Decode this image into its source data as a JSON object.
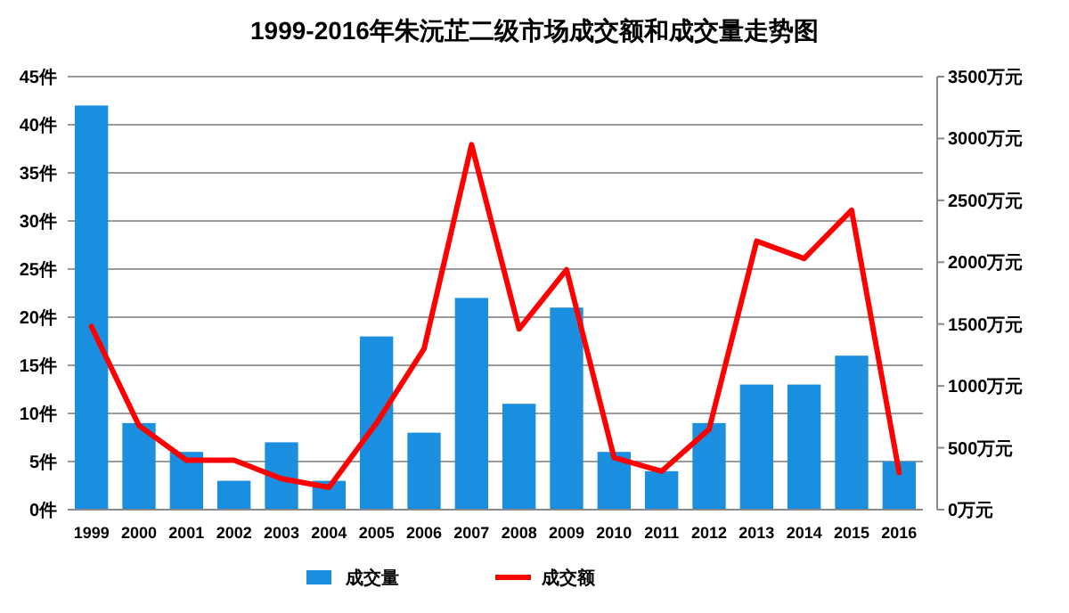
{
  "chart_data": {
    "type": "bar",
    "title": "1999-2016年朱沅芷二级市场成交额和成交量走势图",
    "categories": [
      "1999",
      "2000",
      "2001",
      "2002",
      "2003",
      "2004",
      "2005",
      "2006",
      "2007",
      "2008",
      "2009",
      "2010",
      "2011",
      "2012",
      "2013",
      "2014",
      "2015",
      "2016"
    ],
    "series": [
      {
        "name": "成交量",
        "color": "#1b8fdf",
        "values": [
          42,
          9,
          6,
          3,
          7,
          3,
          18,
          8,
          22,
          11,
          21,
          6,
          4,
          9,
          13,
          13,
          16,
          5
        ]
      },
      {
        "name": "成交额",
        "type": "line",
        "axis": "y2",
        "color": "#ff0000",
        "values": [
          1480,
          680,
          400,
          400,
          250,
          180,
          700,
          1300,
          2950,
          1460,
          1940,
          420,
          310,
          650,
          2170,
          2030,
          2420,
          300
        ]
      }
    ],
    "ylim": [
      0,
      45
    ],
    "yticks": [
      {
        "value": 0,
        "label": "0件"
      },
      {
        "value": 5,
        "label": "5件"
      },
      {
        "value": 10,
        "label": "10件"
      },
      {
        "value": 15,
        "label": "15件"
      },
      {
        "value": 20,
        "label": "20件"
      },
      {
        "value": 25,
        "label": "25件"
      },
      {
        "value": 30,
        "label": "30件"
      },
      {
        "value": 35,
        "label": "35件"
      },
      {
        "value": 40,
        "label": "40件"
      },
      {
        "value": 45,
        "label": "45件"
      }
    ],
    "y2lim": [
      0,
      3500
    ],
    "y2ticks": [
      {
        "value": 0,
        "label": "0万元"
      },
      {
        "value": 500,
        "label": "500万元"
      },
      {
        "value": 1000,
        "label": "1000万元"
      },
      {
        "value": 1500,
        "label": "1500万元"
      },
      {
        "value": 2000,
        "label": "2000万元"
      },
      {
        "value": 2500,
        "label": "2500万元"
      },
      {
        "value": 3000,
        "label": "3000万元"
      },
      {
        "value": 3500,
        "label": "3500万元"
      }
    ],
    "grid": "y",
    "legend": "bottom",
    "line_style": "solid",
    "marker": "none"
  }
}
